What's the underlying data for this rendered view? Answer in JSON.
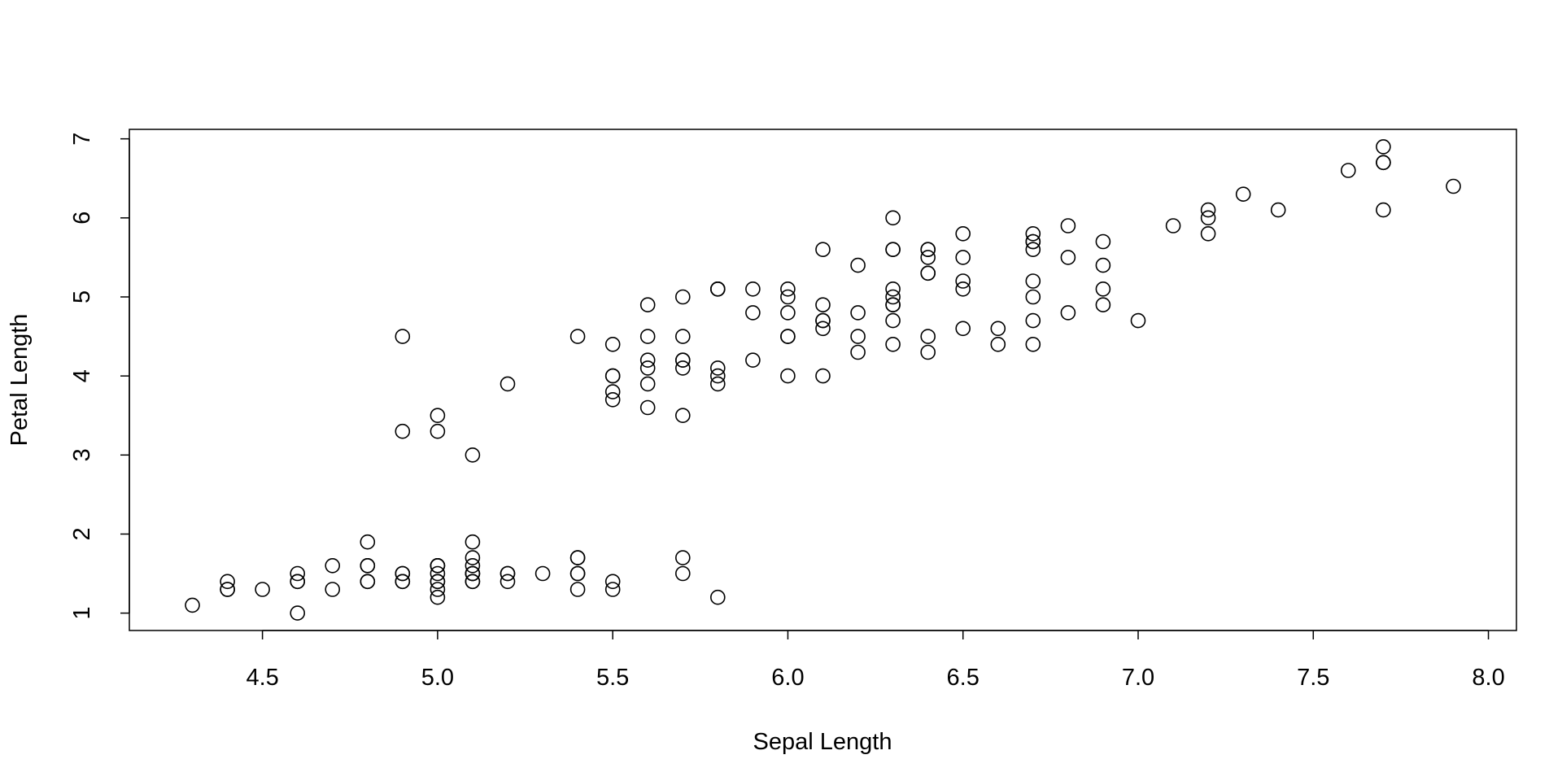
{
  "chart_data": {
    "type": "scatter",
    "title": "",
    "xlabel": "Sepal Length",
    "ylabel": "Petal Length",
    "xlim": [
      4.12,
      8.08
    ],
    "ylim": [
      0.78,
      7.12
    ],
    "x_ticks": [
      4.5,
      5.0,
      5.5,
      6.0,
      6.5,
      7.0,
      7.5,
      8.0
    ],
    "x_tick_labels": [
      "4.5",
      "5.0",
      "5.5",
      "6.0",
      "6.5",
      "7.0",
      "7.5",
      "8.0"
    ],
    "y_ticks": [
      1,
      2,
      3,
      4,
      5,
      6,
      7
    ],
    "y_tick_labels": [
      "1",
      "2",
      "3",
      "4",
      "5",
      "6",
      "7"
    ],
    "marker": "open-circle",
    "marker_color": "#000000",
    "grid": false,
    "points": [
      [
        5.1,
        1.4
      ],
      [
        4.9,
        1.4
      ],
      [
        4.7,
        1.3
      ],
      [
        4.6,
        1.5
      ],
      [
        5.0,
        1.4
      ],
      [
        5.4,
        1.7
      ],
      [
        4.6,
        1.4
      ],
      [
        5.0,
        1.5
      ],
      [
        4.4,
        1.4
      ],
      [
        4.9,
        1.5
      ],
      [
        5.4,
        1.5
      ],
      [
        4.8,
        1.6
      ],
      [
        4.8,
        1.4
      ],
      [
        4.3,
        1.1
      ],
      [
        5.8,
        1.2
      ],
      [
        5.7,
        1.5
      ],
      [
        5.4,
        1.3
      ],
      [
        5.1,
        1.4
      ],
      [
        5.7,
        1.7
      ],
      [
        5.1,
        1.5
      ],
      [
        5.4,
        1.7
      ],
      [
        5.1,
        1.5
      ],
      [
        4.6,
        1.0
      ],
      [
        5.1,
        1.7
      ],
      [
        4.8,
        1.9
      ],
      [
        5.0,
        1.6
      ],
      [
        5.0,
        1.6
      ],
      [
        5.2,
        1.5
      ],
      [
        5.2,
        1.4
      ],
      [
        4.7,
        1.6
      ],
      [
        4.8,
        1.6
      ],
      [
        5.4,
        1.5
      ],
      [
        5.2,
        1.5
      ],
      [
        5.5,
        1.4
      ],
      [
        4.9,
        1.5
      ],
      [
        5.0,
        1.2
      ],
      [
        5.5,
        1.3
      ],
      [
        4.9,
        1.4
      ],
      [
        4.4,
        1.3
      ],
      [
        5.1,
        1.5
      ],
      [
        5.0,
        1.3
      ],
      [
        4.5,
        1.3
      ],
      [
        4.4,
        1.3
      ],
      [
        5.0,
        1.6
      ],
      [
        5.1,
        1.9
      ],
      [
        4.8,
        1.4
      ],
      [
        5.1,
        1.6
      ],
      [
        4.6,
        1.4
      ],
      [
        5.3,
        1.5
      ],
      [
        5.0,
        1.4
      ],
      [
        7.0,
        4.7
      ],
      [
        6.4,
        4.5
      ],
      [
        6.9,
        4.9
      ],
      [
        5.5,
        4.0
      ],
      [
        6.5,
        4.6
      ],
      [
        5.7,
        4.5
      ],
      [
        6.3,
        4.7
      ],
      [
        4.9,
        3.3
      ],
      [
        6.6,
        4.6
      ],
      [
        5.2,
        3.9
      ],
      [
        5.0,
        3.5
      ],
      [
        5.9,
        4.2
      ],
      [
        6.0,
        4.0
      ],
      [
        6.1,
        4.7
      ],
      [
        5.6,
        3.6
      ],
      [
        6.7,
        4.4
      ],
      [
        5.6,
        4.5
      ],
      [
        5.8,
        4.1
      ],
      [
        6.2,
        4.5
      ],
      [
        5.6,
        3.9
      ],
      [
        5.9,
        4.8
      ],
      [
        6.1,
        4.0
      ],
      [
        6.3,
        4.9
      ],
      [
        6.1,
        4.7
      ],
      [
        6.4,
        4.3
      ],
      [
        6.6,
        4.4
      ],
      [
        6.8,
        4.8
      ],
      [
        6.7,
        5.0
      ],
      [
        6.0,
        4.5
      ],
      [
        5.7,
        3.5
      ],
      [
        5.5,
        3.8
      ],
      [
        5.5,
        3.7
      ],
      [
        5.8,
        3.9
      ],
      [
        6.0,
        5.1
      ],
      [
        5.4,
        4.5
      ],
      [
        6.0,
        4.5
      ],
      [
        6.7,
        4.7
      ],
      [
        6.3,
        4.4
      ],
      [
        5.6,
        4.1
      ],
      [
        5.5,
        4.0
      ],
      [
        5.5,
        4.4
      ],
      [
        6.1,
        4.6
      ],
      [
        5.8,
        4.0
      ],
      [
        5.0,
        3.3
      ],
      [
        5.6,
        4.2
      ],
      [
        5.7,
        4.2
      ],
      [
        5.7,
        4.2
      ],
      [
        6.2,
        4.3
      ],
      [
        5.1,
        3.0
      ],
      [
        5.7,
        4.1
      ],
      [
        6.3,
        6.0
      ],
      [
        5.8,
        5.1
      ],
      [
        7.1,
        5.9
      ],
      [
        6.3,
        5.6
      ],
      [
        6.5,
        5.8
      ],
      [
        7.6,
        6.6
      ],
      [
        4.9,
        4.5
      ],
      [
        7.3,
        6.3
      ],
      [
        6.7,
        5.8
      ],
      [
        7.2,
        6.1
      ],
      [
        6.5,
        5.1
      ],
      [
        6.4,
        5.3
      ],
      [
        6.8,
        5.5
      ],
      [
        5.7,
        5.0
      ],
      [
        5.8,
        5.1
      ],
      [
        6.4,
        5.3
      ],
      [
        6.5,
        5.5
      ],
      [
        7.7,
        6.7
      ],
      [
        7.7,
        6.9
      ],
      [
        6.0,
        5.0
      ],
      [
        6.9,
        5.7
      ],
      [
        5.6,
        4.9
      ],
      [
        7.7,
        6.7
      ],
      [
        6.3,
        4.9
      ],
      [
        6.7,
        5.7
      ],
      [
        7.2,
        6.0
      ],
      [
        6.2,
        4.8
      ],
      [
        6.1,
        4.9
      ],
      [
        6.4,
        5.6
      ],
      [
        7.2,
        5.8
      ],
      [
        7.4,
        6.1
      ],
      [
        7.9,
        6.4
      ],
      [
        6.4,
        5.6
      ],
      [
        6.3,
        5.1
      ],
      [
        6.1,
        5.6
      ],
      [
        7.7,
        6.1
      ],
      [
        6.3,
        5.6
      ],
      [
        6.4,
        5.5
      ],
      [
        6.0,
        4.8
      ],
      [
        6.9,
        5.4
      ],
      [
        6.7,
        5.6
      ],
      [
        6.9,
        5.1
      ],
      [
        5.8,
        5.1
      ],
      [
        6.8,
        5.9
      ],
      [
        6.7,
        5.7
      ],
      [
        6.7,
        5.2
      ],
      [
        6.3,
        5.0
      ],
      [
        6.5,
        5.2
      ],
      [
        6.2,
        5.4
      ],
      [
        5.9,
        5.1
      ]
    ]
  }
}
